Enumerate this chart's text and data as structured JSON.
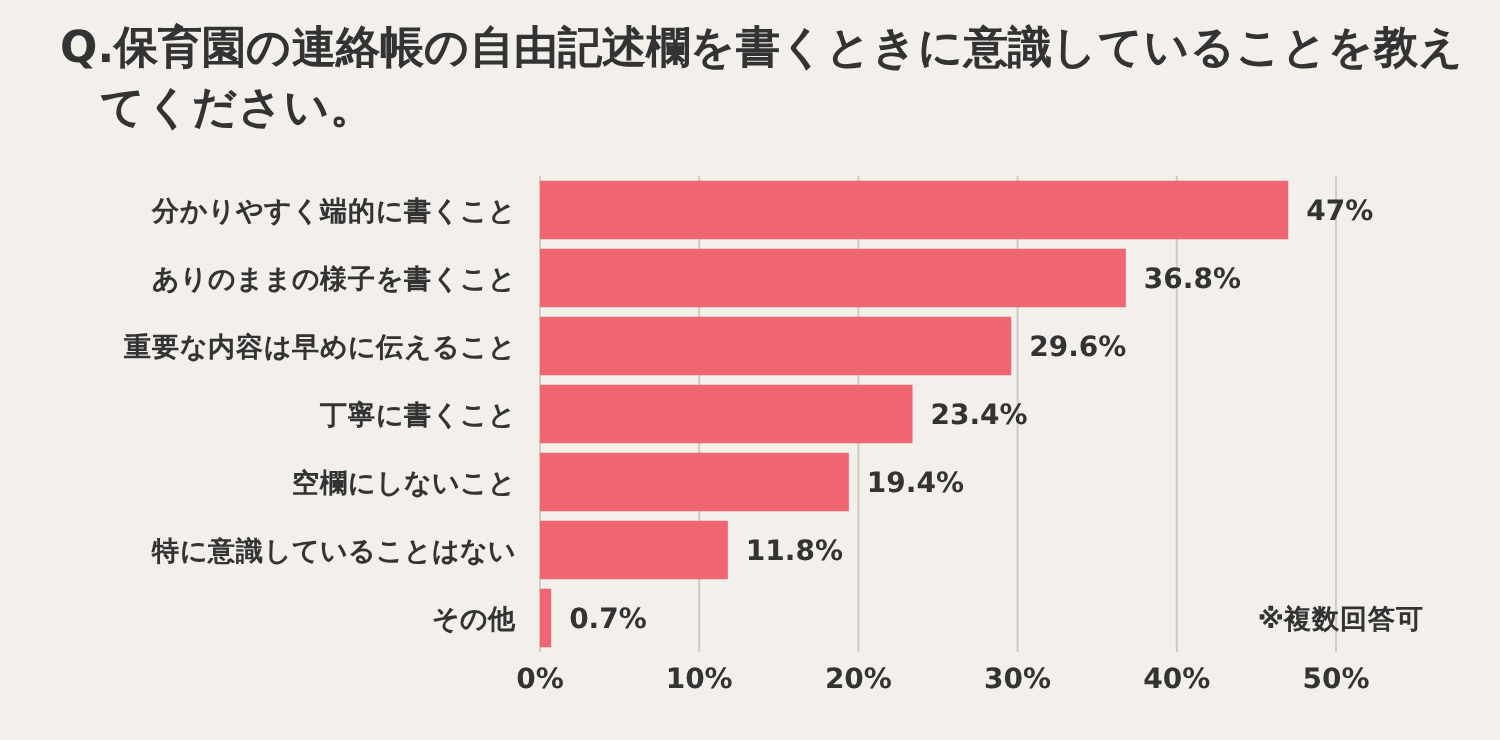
{
  "chart_data": {
    "type": "bar",
    "orientation": "horizontal",
    "title": "Q.保育園の連絡帳の自由記述欄を書くときに意識していることを教えてください。",
    "categories": [
      "分かりやすく端的に書くこと",
      "ありのままの様子を書くこと",
      "重要な内容は早めに伝えること",
      "丁寧に書くこと",
      "空欄にしないこと",
      "特に意識していることはない",
      "その他"
    ],
    "values": [
      47,
      36.8,
      29.6,
      23.4,
      19.4,
      11.8,
      0.7
    ],
    "value_labels": [
      "47%",
      "36.8%",
      "29.6%",
      "23.4%",
      "19.4%",
      "11.8%",
      "0.7%"
    ],
    "color": "#ef6672",
    "xlim": [
      0,
      50
    ],
    "xticks": [
      {
        "value": 0,
        "label": "0%"
      },
      {
        "value": 10,
        "label": "10%"
      },
      {
        "value": 20,
        "label": "20%"
      },
      {
        "value": 30,
        "label": "30%"
      },
      {
        "value": 40,
        "label": "40%"
      },
      {
        "value": 50,
        "label": "50%"
      }
    ],
    "grid": "x",
    "annotations": [
      "※複数回答可"
    ]
  }
}
